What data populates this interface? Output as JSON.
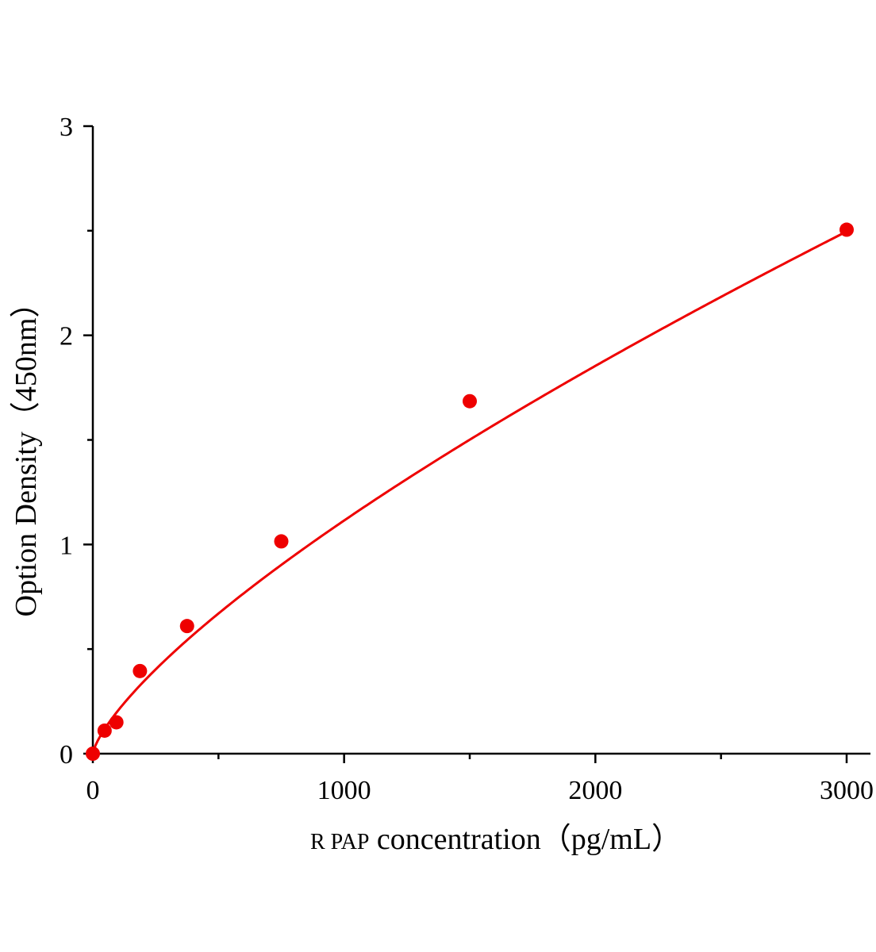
{
  "chart_data": {
    "type": "scatter",
    "xlabel_prefix": "R PAP",
    "xlabel_rest": " concentration（pg/mL）",
    "ylabel": "Option Density（450nm）",
    "xlim": [
      0,
      3100
    ],
    "ylim": [
      0,
      3
    ],
    "x_major_ticks": [
      0,
      1000,
      2000,
      3000
    ],
    "x_minor_ticks": [
      500,
      1500,
      2500
    ],
    "y_major_ticks": [
      0,
      1,
      2,
      3
    ],
    "y_minor_ticks": [
      0.5,
      1.5,
      2.5
    ],
    "x_tick_labels": [
      "0",
      "1000",
      "2000",
      "3000"
    ],
    "y_tick_labels": [
      "0",
      "1",
      "2",
      "3"
    ],
    "grid": false,
    "color": "#ee0000",
    "series": [
      {
        "x": [
          0,
          46.88,
          93.75,
          187.5,
          375,
          750,
          1500,
          3000
        ],
        "y": [
          0.0,
          0.11,
          0.15,
          0.395,
          0.61,
          1.015,
          1.685,
          2.505
        ]
      }
    ],
    "fit_curve": {
      "type": "power",
      "a": 0.007,
      "b": 0.734
    }
  }
}
